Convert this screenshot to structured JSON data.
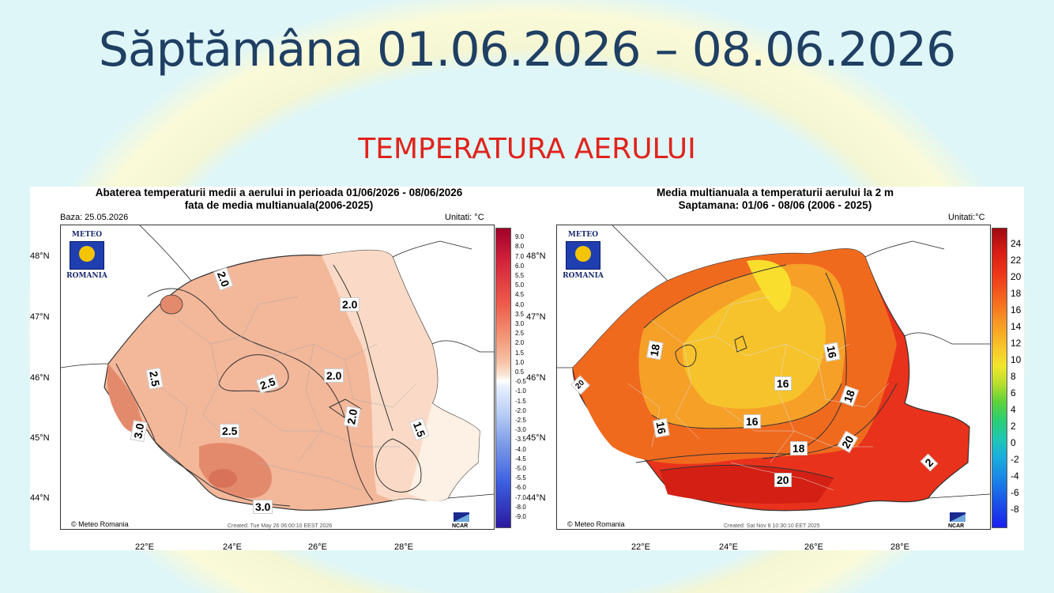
{
  "slide": {
    "title": "Săptămâna 01.06.2026 – 08.06.2026",
    "subtitle": "TEMPERATURA AERULUI"
  },
  "left_map": {
    "title_line1": "Abaterea temperaturii medii a aerului in perioada 01/06/2026 - 08/06/2026",
    "title_line2": "fata de media multianuala(2006-2025)",
    "base": "Baza: 25.05.2026",
    "units": "Unitati: °C",
    "logo_top": "METEO",
    "logo_bottom": "ROMANIA",
    "copyright": "© Meteo Romania",
    "created": "Created: Tue May 26 06:00:10 EEST 2026",
    "ncar": "NCAR",
    "lat_labels": [
      "48°N",
      "47°N",
      "46°N",
      "45°N",
      "44°N"
    ],
    "lon_labels": [
      "22°E",
      "24°E",
      "26°E",
      "28°E"
    ],
    "colorbar_labels": [
      "9.0",
      "8.0",
      "7.0",
      "6.0",
      "5.5",
      "5.0",
      "4.5",
      "4.0",
      "3.5",
      "3.0",
      "2.5",
      "2.0",
      "1.5",
      "1.0",
      "0.5",
      "-0.5",
      "-1.0",
      "-1.5",
      "-2.0",
      "-2.5",
      "-3.0",
      "-3.5",
      "-4.0",
      "-4.5",
      "-5.0",
      "-5.5",
      "-6.0",
      "-7.0",
      "-8.0",
      "-9.0"
    ],
    "contour_labels": [
      "2.0",
      "2.0",
      "2.5",
      "2.5",
      "2.0",
      "2.0",
      "2.5",
      "3.0",
      "3.0",
      "1.5"
    ],
    "colors": {
      "high": "#e48a6c",
      "mid": "#f3b79a",
      "low": "#fadac6",
      "pale": "#fdf0e4"
    }
  },
  "right_map": {
    "title_line1": "Media multianuala a temperaturii aerului la 2 m",
    "title_line2": "Saptamana: 01/06 - 08/06 (2006 - 2025)",
    "units": "Unitati:°C",
    "logo_top": "METEO",
    "logo_bottom": "ROMANIA",
    "copyright": "© Meteo Romania",
    "created": "Created: Sat Nov  8 10:30:10 EET 2025",
    "ncar": "NCAR",
    "lat_labels": [
      "48°N",
      "47°N",
      "46°N",
      "45°N",
      "44°N"
    ],
    "lon_labels": [
      "22°E",
      "24°E",
      "26°E",
      "28°E"
    ],
    "colorbar_labels": [
      "24",
      "22",
      "20",
      "18",
      "16",
      "14",
      "12",
      "10",
      "8",
      "6",
      "4",
      "2",
      "0",
      "-2",
      "-4",
      "-6",
      "-8"
    ],
    "contour_labels": [
      "18",
      "16",
      "16",
      "16",
      "16",
      "18",
      "18",
      "20",
      "20",
      "20",
      "2"
    ],
    "colors": {
      "hot": "#e8321c",
      "warm": "#f06a1e",
      "mild": "#f6a028",
      "cool": "#f7c32c",
      "cooler": "#f9de2e"
    }
  }
}
